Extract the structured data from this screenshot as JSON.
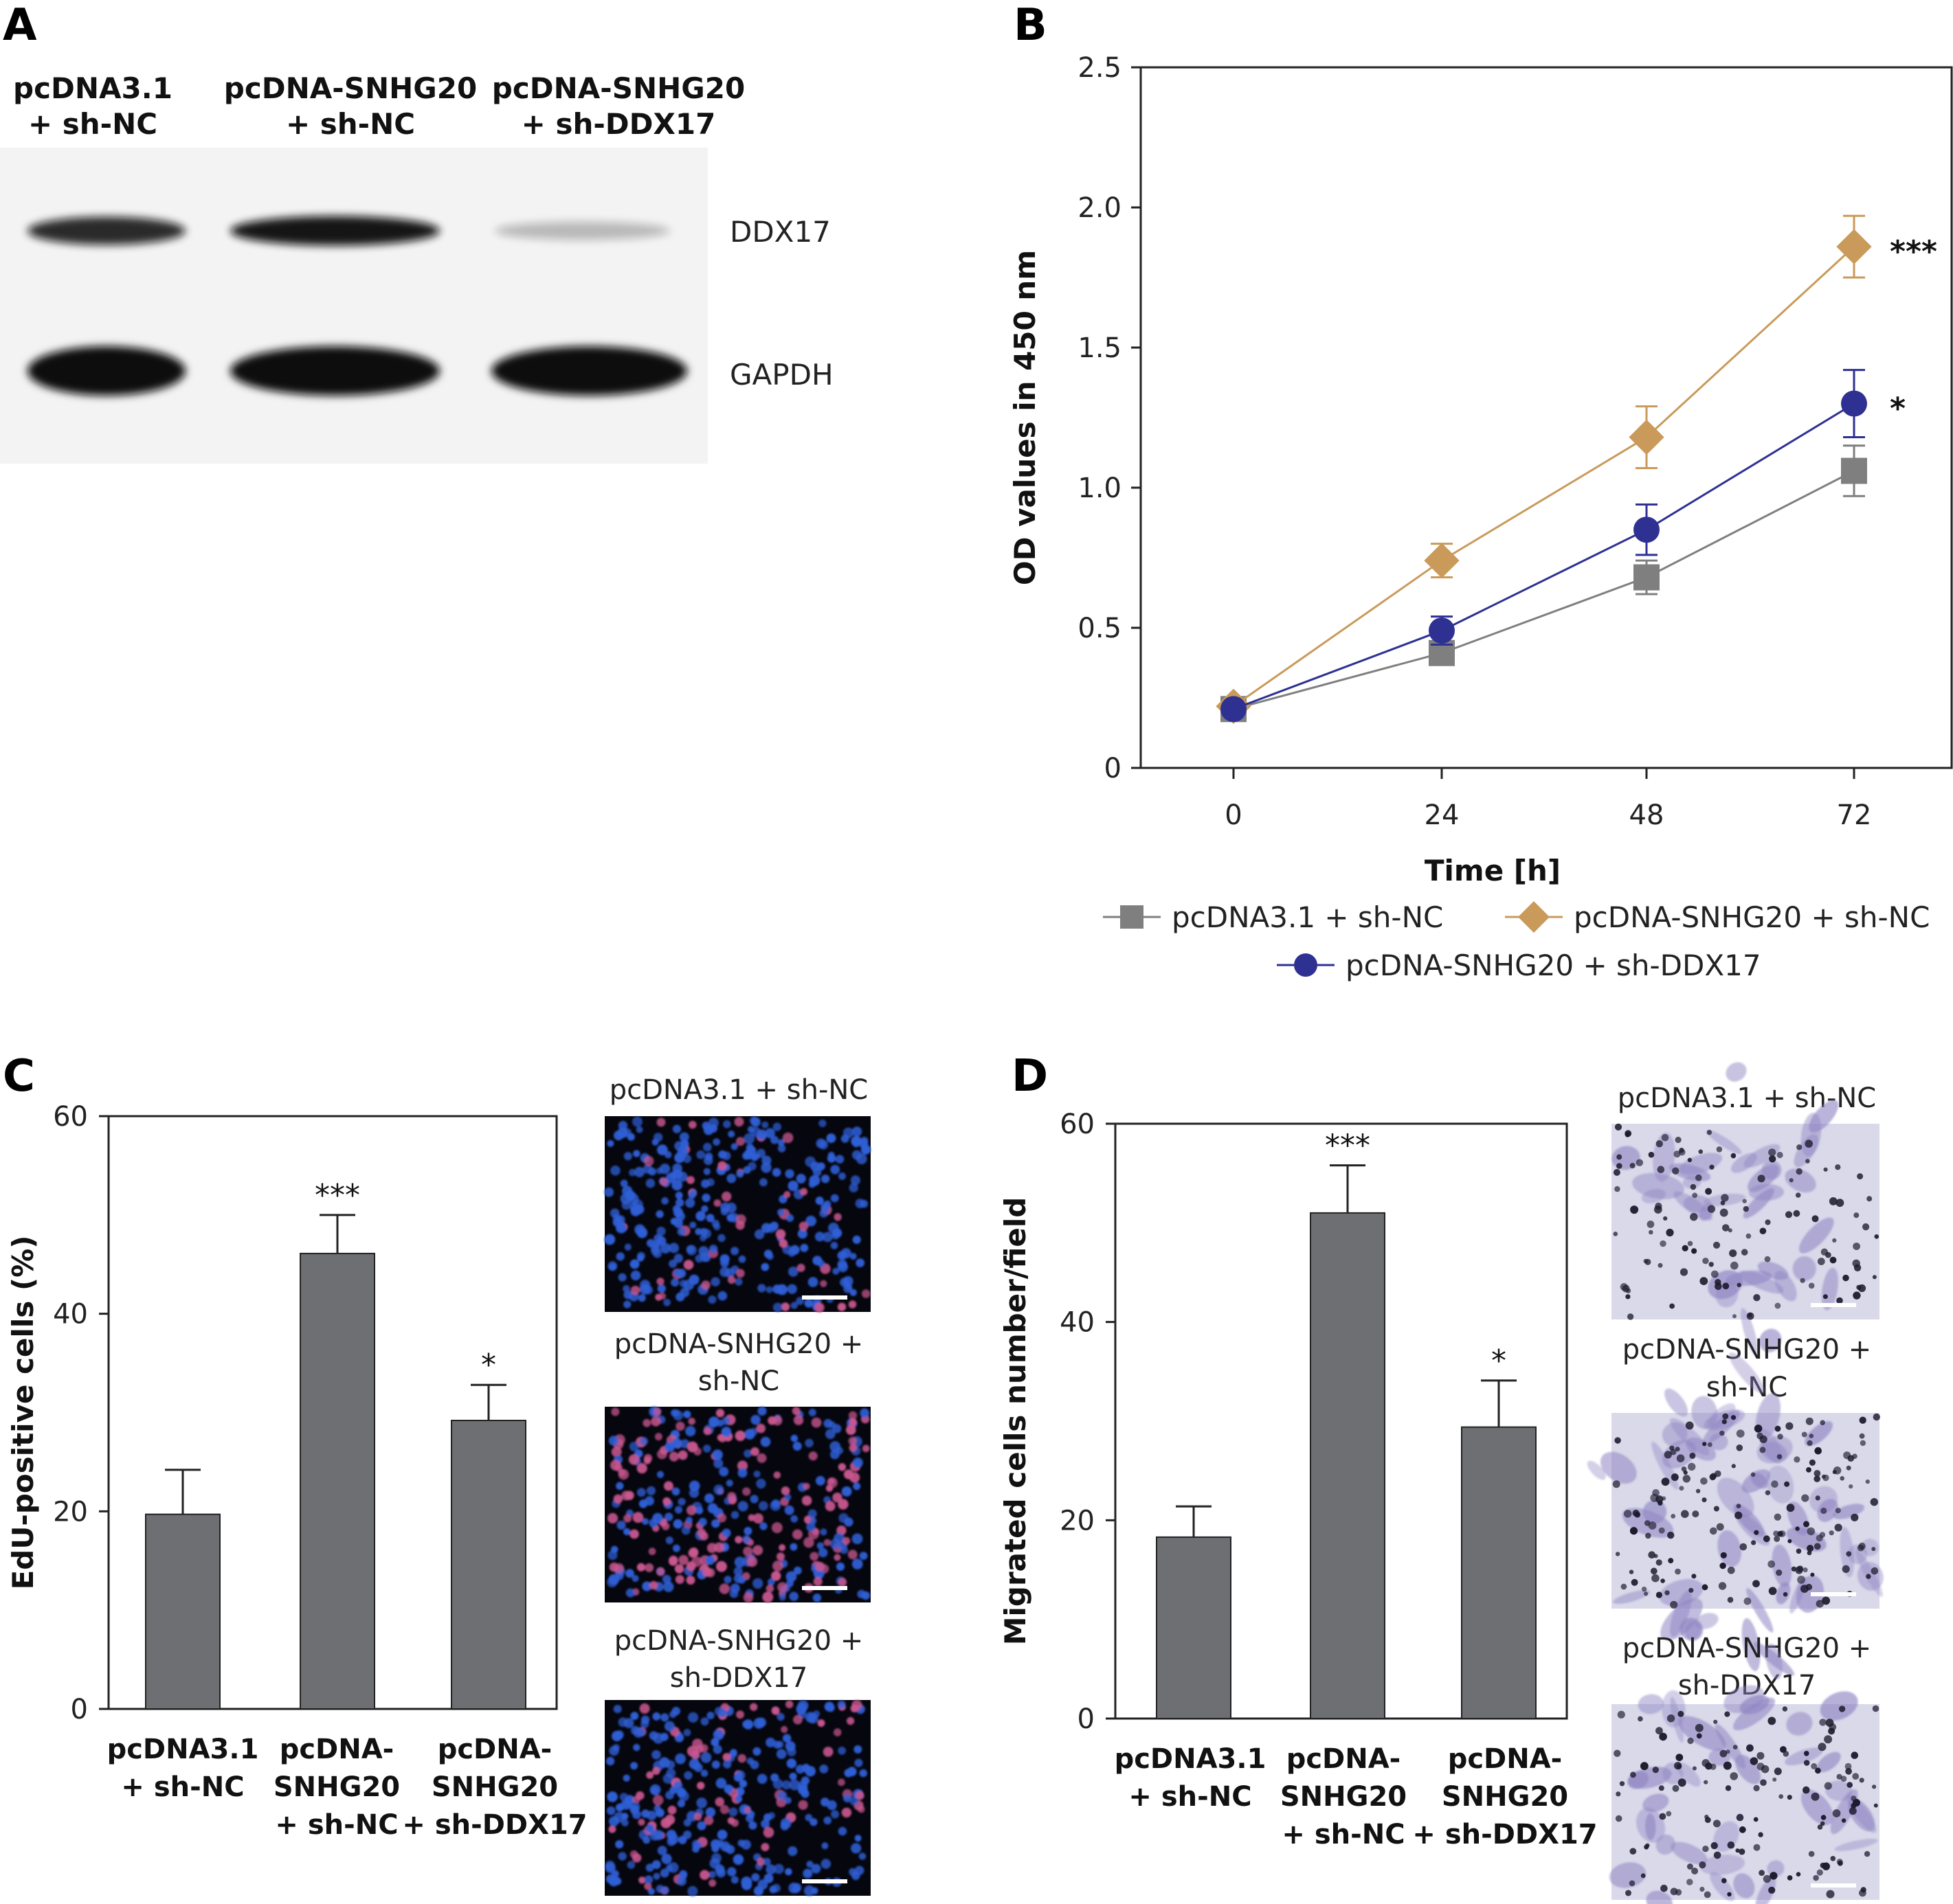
{
  "panel_a": {
    "label": "A",
    "lanes": [
      [
        "pcDNA3.1",
        "+ sh-NC"
      ],
      [
        "pcDNA-SNHG20",
        "+ sh-NC"
      ],
      [
        "pcDNA-SNHG20",
        "+ sh-DDX17"
      ]
    ],
    "bands": [
      "DDX17",
      "GAPDH"
    ],
    "band_intensity": {
      "DDX17": [
        0.85,
        0.95,
        0.12
      ],
      "GAPDH": [
        1.0,
        1.0,
        1.0
      ]
    }
  },
  "chart_data": [
    {
      "panel": "B",
      "type": "line",
      "xlabel": "Time [h]",
      "ylabel": "OD values in 450 nm",
      "x": [
        0,
        24,
        48,
        72
      ],
      "xticks": [
        "0",
        "24",
        "48",
        "72"
      ],
      "yticks": [
        "0",
        "0.5",
        "1.0",
        "1.5",
        "2.0",
        "2.5"
      ],
      "ylim": [
        0,
        2.5
      ],
      "series": [
        {
          "name": "pcDNA3.1 + sh-NC",
          "marker": "square",
          "color": "#7f7f7f",
          "values": [
            0.21,
            0.41,
            0.68,
            1.06
          ],
          "errors": [
            0.02,
            0.03,
            0.06,
            0.09
          ]
        },
        {
          "name": "pcDNA-SNHG20 + sh-NC",
          "marker": "diamond",
          "color": "#c99a5a",
          "values": [
            0.22,
            0.74,
            1.18,
            1.86
          ],
          "errors": [
            0.02,
            0.06,
            0.11,
            0.11
          ],
          "significance": "***"
        },
        {
          "name": "pcDNA-SNHG20 + sh-DDX17",
          "marker": "circle",
          "color": "#2e3192",
          "values": [
            0.21,
            0.49,
            0.85,
            1.3
          ],
          "errors": [
            0.02,
            0.05,
            0.09,
            0.12
          ],
          "significance": "*"
        }
      ],
      "legend_position": "bottom"
    },
    {
      "panel": "C",
      "type": "bar",
      "ylabel": "EdU-positive cells (%)",
      "categories": [
        [
          "pcDNA3.1",
          "+ sh-NC"
        ],
        [
          "pcDNA-",
          "SNHG20",
          "+ sh-NC"
        ],
        [
          "pcDNA-",
          "SNHG20",
          "+ sh-DDX17"
        ]
      ],
      "values": [
        19.7,
        46.1,
        29.2
      ],
      "errors": [
        4.5,
        3.9,
        3.6
      ],
      "significance": [
        "",
        "***",
        "*"
      ],
      "yticks": [
        "0",
        "20",
        "40",
        "60"
      ],
      "ylim": [
        0,
        60
      ],
      "color": "#6e6f72"
    },
    {
      "panel": "D",
      "type": "bar",
      "ylabel": "Migrated cells number/field",
      "categories": [
        [
          "pcDNA3.1",
          "+ sh-NC"
        ],
        [
          "pcDNA-",
          "SNHG20",
          "+ sh-NC"
        ],
        [
          "pcDNA-",
          "SNHG20",
          "+ sh-DDX17"
        ]
      ],
      "values": [
        18.3,
        51.0,
        29.4
      ],
      "errors": [
        3.1,
        4.8,
        4.7
      ],
      "significance": [
        "",
        "***",
        "*"
      ],
      "yticks": [
        "0",
        "20",
        "40",
        "60"
      ],
      "ylim": [
        0,
        60
      ],
      "color": "#6e6f72"
    }
  ],
  "panel_b": {
    "label": "B"
  },
  "panel_c": {
    "label": "C",
    "images": [
      {
        "title": [
          "pcDNA3.1 + sh-NC"
        ],
        "pink_fraction": 0.12
      },
      {
        "title": [
          "pcDNA-SNHG20 +",
          "sh-NC"
        ],
        "pink_fraction": 0.45
      },
      {
        "title": [
          "pcDNA-SNHG20 +",
          "sh-DDX17"
        ],
        "pink_fraction": 0.25
      }
    ]
  },
  "panel_d": {
    "label": "D",
    "images": [
      {
        "title": [
          "pcDNA3.1 + sh-NC"
        ],
        "cell_density": 0.35
      },
      {
        "title": [
          "pcDNA-SNHG20 +",
          "sh-NC"
        ],
        "cell_density": 0.8
      },
      {
        "title": [
          "pcDNA-SNHG20 +",
          "sh-DDX17"
        ],
        "cell_density": 0.5
      }
    ]
  }
}
